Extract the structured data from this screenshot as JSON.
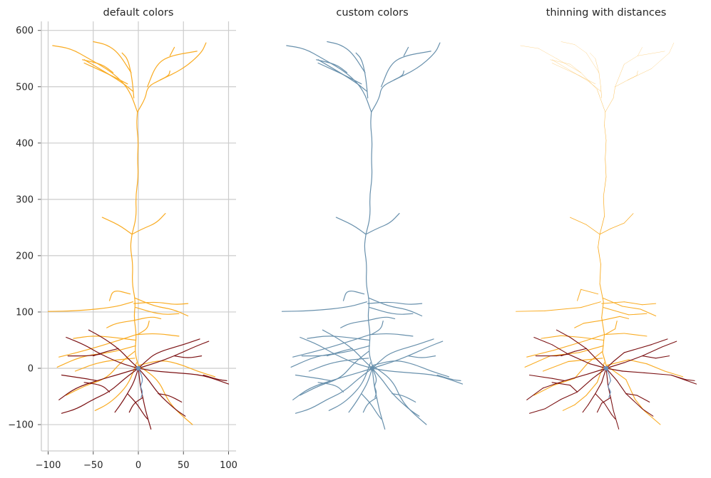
{
  "chart_data": [
    {
      "type": "neuron-morphology",
      "title": "default colors",
      "axes_visible": true,
      "grid": true,
      "xlim": [
        -105,
        108
      ],
      "ylim": [
        -148,
        615
      ],
      "xticks": [
        -100,
        -50,
        0,
        50,
        100
      ],
      "yticks": [
        -100,
        0,
        100,
        200,
        300,
        400,
        500,
        600
      ],
      "colors": {
        "apical": "#f9ab21",
        "basal": "#7b1113",
        "axon": "#6b8fb8"
      },
      "line_width": 1.2
    },
    {
      "type": "neuron-morphology",
      "title": "custom colors",
      "axes_visible": false,
      "colors": {
        "apical": "#6890ac",
        "basal": "#6890ac",
        "axon": "#6890ac"
      },
      "line_width": 1.2
    },
    {
      "type": "neuron-morphology",
      "title": "thinning with distances",
      "axes_visible": false,
      "colors": {
        "apical": "#f9ab21",
        "basal": "#7b1113",
        "axon": "#6b8fb8"
      },
      "line_width": 1.2,
      "thinning_with_distance": true
    }
  ],
  "morphology": {
    "soma": [
      0,
      0
    ],
    "apical": [
      [
        [
          0,
          5
        ],
        [
          -4,
          28
        ],
        [
          -2,
          60
        ],
        [
          -5,
          90
        ],
        [
          -3,
          118
        ],
        [
          -7,
          150
        ],
        [
          -6,
          185
        ],
        [
          -9,
          215
        ],
        [
          -7,
          238
        ]
      ],
      [
        [
          -7,
          238
        ],
        [
          -2,
          270
        ],
        [
          -3,
          305
        ],
        [
          0,
          340
        ],
        [
          -1,
          372
        ],
        [
          0,
          405
        ],
        [
          -2,
          432
        ],
        [
          -1,
          455
        ]
      ],
      [
        [
          -6,
          118
        ],
        [
          -28,
          108
        ],
        [
          -68,
          102
        ],
        [
          -100,
          101
        ]
      ],
      [
        [
          -5,
          115
        ],
        [
          20,
          118
        ],
        [
          40,
          113
        ],
        [
          55,
          115
        ]
      ],
      [
        [
          -4,
          125
        ],
        [
          18,
          110
        ],
        [
          38,
          105
        ],
        [
          55,
          93
        ]
      ],
      [
        [
          -9,
          132
        ],
        [
          -28,
          140
        ],
        [
          -32,
          120
        ]
      ],
      [
        [
          -3,
          108
        ],
        [
          25,
          95
        ],
        [
          45,
          97
        ]
      ],
      [
        [
          -7,
          238
        ],
        [
          5,
          248
        ],
        [
          20,
          258
        ],
        [
          30,
          275
        ]
      ],
      [
        [
          -7,
          238
        ],
        [
          -22,
          255
        ],
        [
          -40,
          268
        ]
      ],
      [
        [
          -1,
          455
        ],
        [
          8,
          480
        ],
        [
          10,
          500
        ],
        [
          24,
          512
        ],
        [
          50,
          532
        ],
        [
          70,
          560
        ],
        [
          75,
          578
        ]
      ],
      [
        [
          -1,
          455
        ],
        [
          -10,
          495
        ],
        [
          -28,
          525
        ],
        [
          -55,
          550
        ],
        [
          -75,
          568
        ],
        [
          -95,
          573
        ]
      ],
      [
        [
          -6,
          492
        ],
        [
          -20,
          510
        ],
        [
          -60,
          548
        ]
      ],
      [
        [
          -5,
          480
        ],
        [
          -6,
          500
        ],
        [
          -8,
          525
        ],
        [
          -12,
          550
        ],
        [
          -18,
          560
        ]
      ],
      [
        [
          10,
          500
        ],
        [
          20,
          540
        ],
        [
          35,
          555
        ],
        [
          65,
          563
        ]
      ],
      [
        [
          -12,
          505
        ],
        [
          -30,
          520
        ],
        [
          -60,
          542
        ]
      ],
      [
        [
          -8,
          525
        ],
        [
          -22,
          560
        ],
        [
          -35,
          575
        ],
        [
          -50,
          580
        ]
      ],
      [
        [
          24,
          512
        ],
        [
          34,
          520
        ],
        [
          35,
          528
        ]
      ],
      [
        [
          -28,
          525
        ],
        [
          -40,
          540
        ],
        [
          -62,
          548
        ]
      ],
      [
        [
          35,
          555
        ],
        [
          40,
          570
        ]
      ],
      [
        [
          -2,
          60
        ],
        [
          -25,
          48
        ],
        [
          -58,
          32
        ],
        [
          -88,
          20
        ]
      ],
      [
        [
          -2,
          60
        ],
        [
          20,
          62
        ],
        [
          45,
          57
        ]
      ],
      [
        [
          -3,
          40
        ],
        [
          -30,
          28
        ],
        [
          -62,
          22
        ],
        [
          -90,
          2
        ]
      ],
      [
        [
          -4,
          30
        ],
        [
          -20,
          10
        ],
        [
          -35,
          -18
        ],
        [
          -58,
          -30
        ],
        [
          -80,
          -48
        ]
      ],
      [
        [
          -3,
          50
        ],
        [
          -28,
          55
        ],
        [
          -50,
          58
        ],
        [
          -72,
          53
        ]
      ],
      [
        [
          0,
          5
        ],
        [
          25,
          15
        ],
        [
          45,
          8
        ],
        [
          65,
          -5
        ],
        [
          85,
          -15
        ]
      ],
      [
        [
          -2,
          10
        ],
        [
          -10,
          -25
        ],
        [
          -22,
          -48
        ],
        [
          -35,
          -65
        ],
        [
          -48,
          -75
        ]
      ],
      [
        [
          -1,
          60
        ],
        [
          10,
          70
        ],
        [
          12,
          84
        ]
      ],
      [
        [
          -4,
          18
        ],
        [
          -42,
          12
        ],
        [
          -70,
          -5
        ]
      ],
      [
        [
          0,
          5
        ],
        [
          22,
          -20
        ],
        [
          32,
          -55
        ],
        [
          42,
          -75
        ],
        [
          60,
          -100
        ]
      ],
      [
        [
          -5,
          85
        ],
        [
          -25,
          80
        ],
        [
          -35,
          72
        ]
      ],
      [
        [
          -5,
          85
        ],
        [
          15,
          92
        ],
        [
          25,
          88
        ]
      ]
    ],
    "basal": [
      [
        [
          0,
          0
        ],
        [
          -18,
          8
        ],
        [
          -42,
          25
        ],
        [
          -60,
          42
        ],
        [
          -80,
          55
        ]
      ],
      [
        [
          0,
          0
        ],
        [
          -20,
          -10
        ],
        [
          -46,
          -22
        ],
        [
          -70,
          -35
        ],
        [
          -88,
          -56
        ]
      ],
      [
        [
          0,
          0
        ],
        [
          -15,
          -18
        ],
        [
          -32,
          -42
        ],
        [
          -50,
          -55
        ],
        [
          -68,
          -72
        ],
        [
          -85,
          -80
        ]
      ],
      [
        [
          0,
          0
        ],
        [
          -5,
          -25
        ],
        [
          -12,
          -45
        ],
        [
          -20,
          -65
        ],
        [
          -26,
          -78
        ]
      ],
      [
        [
          0,
          0
        ],
        [
          2,
          -30
        ],
        [
          5,
          -52
        ],
        [
          8,
          -75
        ],
        [
          14,
          -108
        ]
      ],
      [
        [
          0,
          0
        ],
        [
          12,
          -22
        ],
        [
          22,
          -45
        ],
        [
          40,
          -72
        ],
        [
          52,
          -85
        ]
      ],
      [
        [
          0,
          0
        ],
        [
          18,
          -5
        ],
        [
          42,
          -8
        ],
        [
          72,
          -12
        ],
        [
          100,
          -28
        ]
      ],
      [
        [
          0,
          0
        ],
        [
          20,
          10
        ],
        [
          40,
          22
        ],
        [
          62,
          38
        ],
        [
          78,
          48
        ]
      ],
      [
        [
          0,
          0
        ],
        [
          8,
          12
        ],
        [
          20,
          28
        ],
        [
          50,
          42
        ],
        [
          68,
          52
        ]
      ],
      [
        [
          0,
          0
        ],
        [
          -10,
          15
        ],
        [
          -22,
          35
        ],
        [
          -40,
          55
        ],
        [
          -55,
          68
        ]
      ],
      [
        [
          -42,
          25
        ],
        [
          -55,
          22
        ],
        [
          -78,
          22
        ]
      ],
      [
        [
          -46,
          -22
        ],
        [
          -60,
          -18
        ],
        [
          -85,
          -12
        ]
      ],
      [
        [
          22,
          -45
        ],
        [
          34,
          -48
        ],
        [
          48,
          -60
        ]
      ],
      [
        [
          72,
          -12
        ],
        [
          88,
          -20
        ],
        [
          98,
          -22
        ]
      ],
      [
        [
          -32,
          -42
        ],
        [
          -40,
          -30
        ],
        [
          -60,
          -25
        ]
      ],
      [
        [
          5,
          -52
        ],
        [
          -5,
          -62
        ],
        [
          -10,
          -78
        ]
      ],
      [
        [
          40,
          22
        ],
        [
          55,
          18
        ],
        [
          70,
          22
        ]
      ],
      [
        [
          -22,
          35
        ],
        [
          -35,
          30
        ],
        [
          -50,
          22
        ]
      ],
      [
        [
          -12,
          -45
        ],
        [
          -2,
          -62
        ],
        [
          6,
          -82
        ],
        [
          10,
          -90
        ]
      ]
    ],
    "axon": [
      [
        [
          0,
          0
        ],
        [
          3,
          -10
        ],
        [
          5,
          -22
        ],
        [
          2,
          -32
        ],
        [
          5,
          -42
        ],
        [
          3,
          -52
        ]
      ]
    ]
  }
}
